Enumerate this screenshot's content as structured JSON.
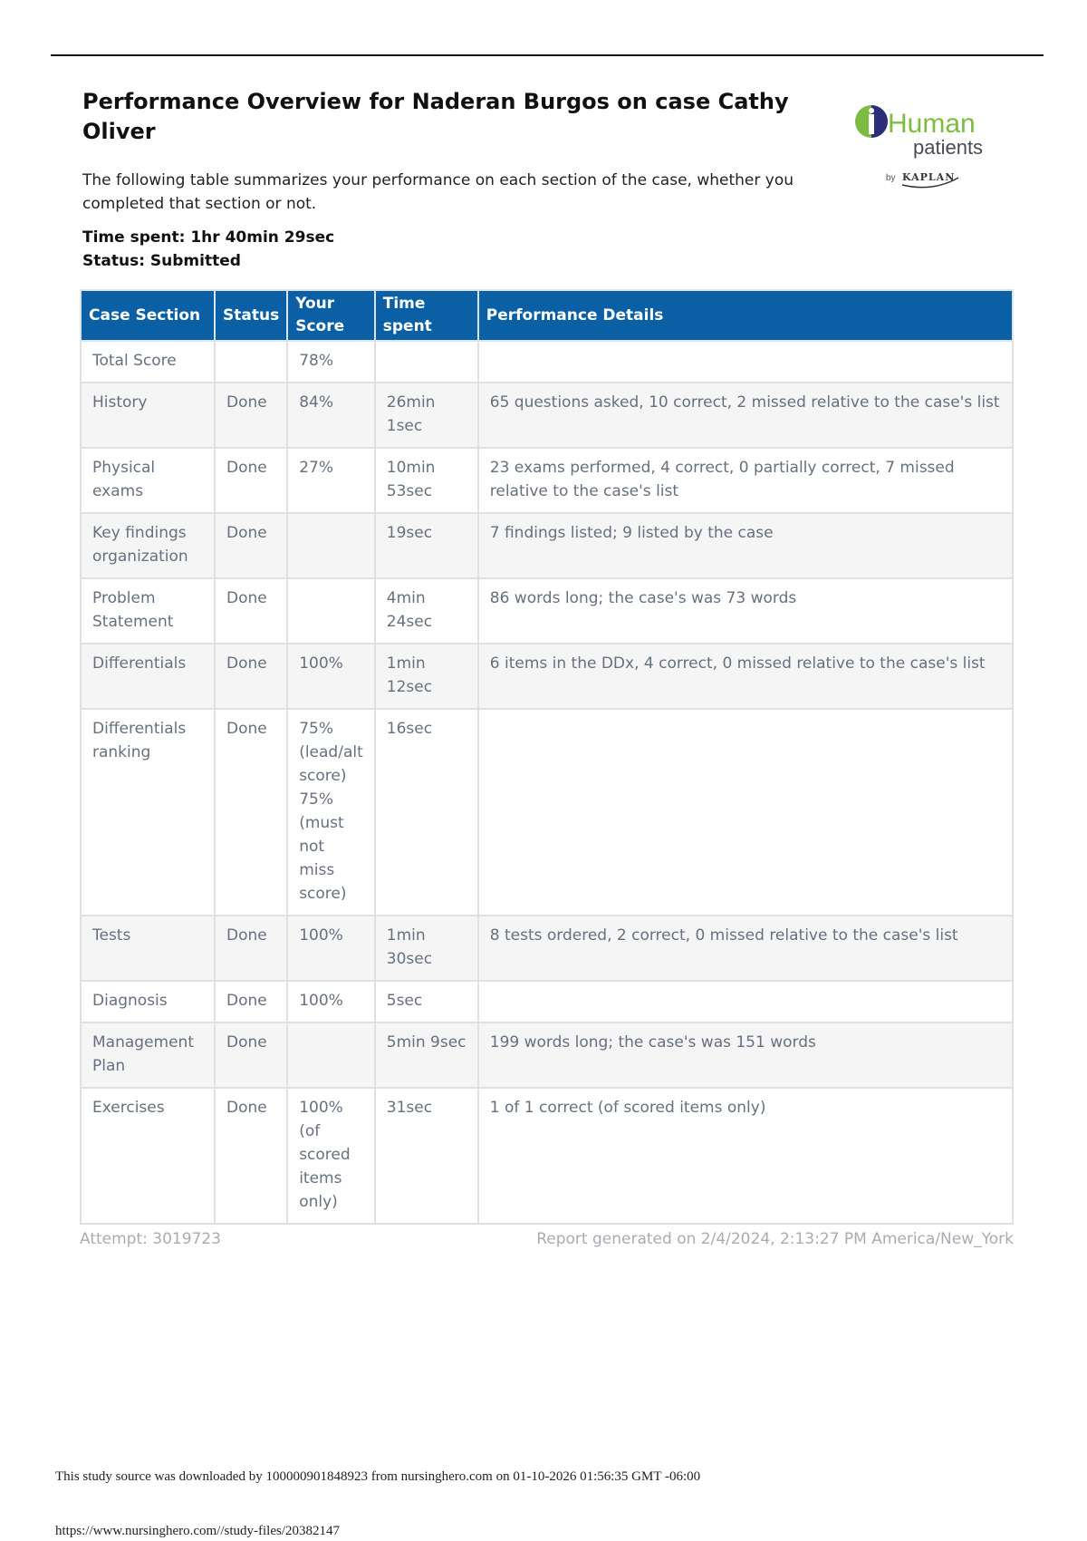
{
  "title": "Performance Overview for Naderan Burgos on case Cathy Oliver",
  "description": "The following table summarizes your performance on each section of the case, whether you completed that section or not.",
  "time_spent": "Time spent: 1hr 40min 29sec",
  "status": "Status: Submitted",
  "logo": {
    "text": "i-Human patients by KAPLAN",
    "colors": {
      "green": "#7dbb42",
      "navy": "#2b2f7a"
    }
  },
  "table": {
    "headers": [
      "Case Section",
      "Status",
      "Your Score",
      "Time spent",
      "Performance Details"
    ],
    "rows": [
      [
        "Total Score",
        "",
        "78%",
        "",
        ""
      ],
      [
        "History",
        "Done",
        "84%",
        "26min 1sec",
        "65 questions asked, 10 correct, 2 missed relative to the case's list"
      ],
      [
        "Physical exams",
        "Done",
        "27%",
        "10min 53sec",
        "23 exams performed, 4 correct, 0 partially correct, 7 missed relative to the case's list"
      ],
      [
        "Key findings organization",
        "Done",
        "",
        "19sec",
        "7 findings listed; 9 listed by the case"
      ],
      [
        "Problem Statement",
        "Done",
        "",
        "4min 24sec",
        "86 words long; the case's was 73 words"
      ],
      [
        "Differentials",
        "Done",
        "100%",
        "1min 12sec",
        "6 items in the DDx, 4 correct, 0 missed relative to the case's list"
      ],
      [
        "Differentials ranking",
        "Done",
        "75% (lead/alt score) 75% (must not miss score)",
        "16sec",
        ""
      ],
      [
        "Tests",
        "Done",
        "100%",
        "1min 30sec",
        "8 tests ordered, 2 correct, 0 missed relative to the case's list"
      ],
      [
        "Diagnosis",
        "Done",
        "100%",
        "5sec",
        ""
      ],
      [
        "Management Plan",
        "Done",
        "",
        "5min 9sec",
        "199 words long; the case's was 151 words"
      ],
      [
        "Exercises",
        "Done",
        "100% (of scored items only)",
        "31sec",
        "1 of 1 correct (of scored items only)"
      ]
    ],
    "header_color": "#0b5fa5"
  },
  "attempt": "Attempt: 3019723",
  "generated": "Report generated on 2/4/2024, 2:13:27 PM America/New_York",
  "download_note": "This study source was downloaded by 100000901848923 from nursinghero.com on 01-10-2026 01:56:35 GMT -06:00",
  "url": "https://www.nursinghero.com//study-files/20382147"
}
